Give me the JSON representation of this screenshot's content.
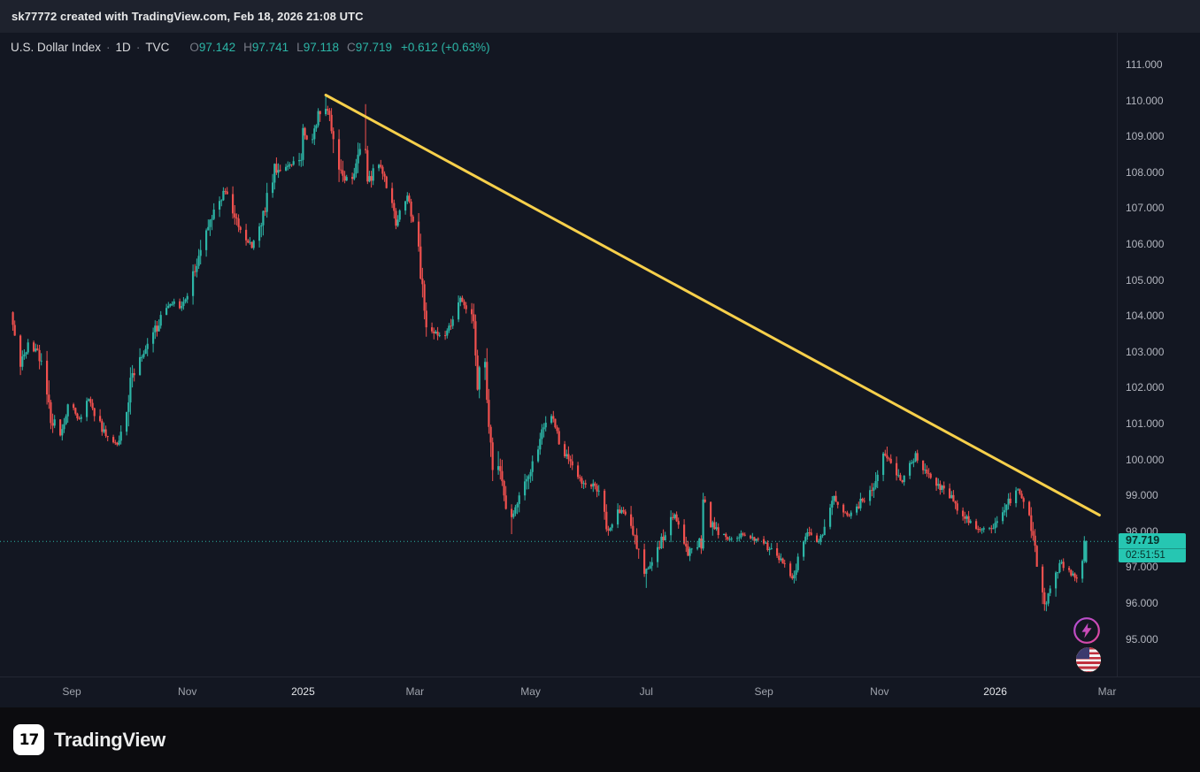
{
  "topbar": {
    "attribution": "sk77772 created with TradingView.com, Feb 18, 2026 21:08 UTC"
  },
  "legend": {
    "symbol": "U.S. Dollar Index",
    "sep1": "·",
    "interval": "1D",
    "sep2": "·",
    "exchange": "TVC",
    "ohlc": [
      {
        "label": "O",
        "value": "97.142"
      },
      {
        "label": "H",
        "value": "97.741"
      },
      {
        "label": "L",
        "value": "97.118"
      },
      {
        "label": "C",
        "value": "97.719"
      }
    ],
    "change": "+0.612 (+0.63%)"
  },
  "price_badge": {
    "price": "97.719",
    "countdown": "02:51:51"
  },
  "footer": {
    "brand": "TradingView",
    "logo_glyph": "17"
  },
  "colors": {
    "background": "#131722",
    "topbar_bg": "#1e222d",
    "up": "#2cb5a6",
    "down": "#f1504e",
    "trendline": "#f7d04b",
    "badge_bg": "#26c6b2",
    "badge_text": "#07302a",
    "axis_text": "#b2b5be"
  },
  "chart_data": {
    "type": "candlestick",
    "title": "U.S. Dollar Index · 1D · TVC",
    "symbol": "U.S. Dollar Index",
    "interval": "1D",
    "exchange": "TVC",
    "ohlc_last": {
      "open": 97.142,
      "high": 97.741,
      "low": 97.118,
      "close": 97.719
    },
    "change": {
      "abs": 0.612,
      "pct": 0.63
    },
    "current_price": 97.719,
    "ylim": [
      94.8,
      111.3
    ],
    "grid": false,
    "days_origin": "2024-08-01",
    "y_ticks": [
      "111.000",
      "110.000",
      "109.000",
      "108.000",
      "107.000",
      "106.000",
      "105.000",
      "104.000",
      "103.000",
      "102.000",
      "101.000",
      "100.000",
      "99.000",
      "98.000",
      "97.000",
      "96.000",
      "95.000"
    ],
    "x_ticks": [
      {
        "label": "Sep",
        "day": 31
      },
      {
        "label": "Nov",
        "day": 92
      },
      {
        "label": "2025",
        "day": 153,
        "emph": true
      },
      {
        "label": "Mar",
        "day": 212
      },
      {
        "label": "May",
        "day": 273
      },
      {
        "label": "Jul",
        "day": 334
      },
      {
        "label": "Sep",
        "day": 396
      },
      {
        "label": "Nov",
        "day": 457
      },
      {
        "label": "2026",
        "day": 518,
        "emph": true
      },
      {
        "label": "Mar",
        "day": 577
      }
    ],
    "anchors_format": "[days_since_2024-08-01, close_price]",
    "anchors": [
      [
        0,
        104.1
      ],
      [
        3,
        103.3
      ],
      [
        5,
        102.6
      ],
      [
        9,
        103.2
      ],
      [
        15,
        102.9
      ],
      [
        21,
        101.2
      ],
      [
        26,
        100.7
      ],
      [
        31,
        101.6
      ],
      [
        36,
        101.1
      ],
      [
        41,
        101.7
      ],
      [
        48,
        100.8
      ],
      [
        56,
        100.4
      ],
      [
        61,
        101.1
      ],
      [
        64,
        102.5
      ],
      [
        70,
        102.9
      ],
      [
        77,
        103.7
      ],
      [
        84,
        104.4
      ],
      [
        90,
        104.2
      ],
      [
        97,
        105.3
      ],
      [
        102,
        106.0
      ],
      [
        105,
        106.7
      ],
      [
        113,
        107.5
      ],
      [
        117,
        106.8
      ],
      [
        123,
        106.3
      ],
      [
        127,
        105.9
      ],
      [
        132,
        106.6
      ],
      [
        139,
        108.1
      ],
      [
        146,
        108.2
      ],
      [
        153,
        108.4
      ],
      [
        154,
        109.2
      ],
      [
        158,
        108.6
      ],
      [
        162,
        109.7
      ],
      [
        165,
        109.95
      ],
      [
        169,
        109.3
      ],
      [
        172,
        108.2
      ],
      [
        179,
        107.6
      ],
      [
        183,
        108.3
      ],
      [
        186,
        109.55
      ],
      [
        188,
        107.8
      ],
      [
        195,
        108.2
      ],
      [
        203,
        106.6
      ],
      [
        209,
        107.4
      ],
      [
        215,
        105.9
      ],
      [
        218,
        104.0
      ],
      [
        222,
        103.5
      ],
      [
        229,
        103.4
      ],
      [
        237,
        104.5
      ],
      [
        244,
        103.9
      ],
      [
        246,
        102.1
      ],
      [
        249,
        103.2
      ],
      [
        252,
        101.1
      ],
      [
        254,
        99.9
      ],
      [
        258,
        99.5
      ],
      [
        263,
        98.2
      ],
      [
        271,
        99.3
      ],
      [
        276,
        100.1
      ],
      [
        284,
        101.4
      ],
      [
        291,
        100.2
      ],
      [
        297,
        99.7
      ],
      [
        301,
        99.4
      ],
      [
        309,
        99.2
      ],
      [
        315,
        98.0
      ],
      [
        320,
        98.6
      ],
      [
        326,
        98.4
      ],
      [
        334,
        96.8
      ],
      [
        342,
        97.6
      ],
      [
        350,
        98.5
      ],
      [
        357,
        97.4
      ],
      [
        361,
        97.7
      ],
      [
        364,
        97.6
      ],
      [
        365,
        99.0
      ],
      [
        368,
        98.2
      ],
      [
        377,
        97.8
      ],
      [
        386,
        97.9
      ],
      [
        396,
        97.7
      ],
      [
        404,
        97.3
      ],
      [
        412,
        96.7
      ],
      [
        420,
        98.0
      ],
      [
        426,
        97.7
      ],
      [
        434,
        98.9
      ],
      [
        442,
        98.4
      ],
      [
        448,
        98.8
      ],
      [
        454,
        99.1
      ],
      [
        461,
        100.2
      ],
      [
        466,
        99.6
      ],
      [
        470,
        99.4
      ],
      [
        474,
        99.9
      ],
      [
        477,
        100.1
      ],
      [
        483,
        99.6
      ],
      [
        487,
        99.4
      ],
      [
        496,
        98.9
      ],
      [
        502,
        98.4
      ],
      [
        509,
        98.1
      ],
      [
        515,
        98.0
      ],
      [
        522,
        98.4
      ],
      [
        527,
        98.9
      ],
      [
        530,
        99.2
      ],
      [
        535,
        98.8
      ],
      [
        540,
        97.4
      ],
      [
        545,
        95.9
      ],
      [
        549,
        96.6
      ],
      [
        553,
        97.1
      ],
      [
        558,
        96.9
      ],
      [
        561,
        96.7
      ],
      [
        564,
        96.9
      ],
      [
        566,
        97.6
      ]
    ],
    "force_extremes": [
      {
        "day": 165,
        "high": 110.18
      },
      {
        "day": 186,
        "high": 109.9
      },
      {
        "day": 263,
        "low": 97.92
      },
      {
        "day": 334,
        "low": 96.42
      },
      {
        "day": 412,
        "low": 96.55
      },
      {
        "day": 461,
        "high": 100.36
      },
      {
        "day": 545,
        "low": 95.77
      }
    ],
    "trendline": {
      "from": [
        165,
        110.15
      ],
      "to": [
        573,
        98.45
      ],
      "color": "#f7d04b"
    },
    "seed": 42
  }
}
